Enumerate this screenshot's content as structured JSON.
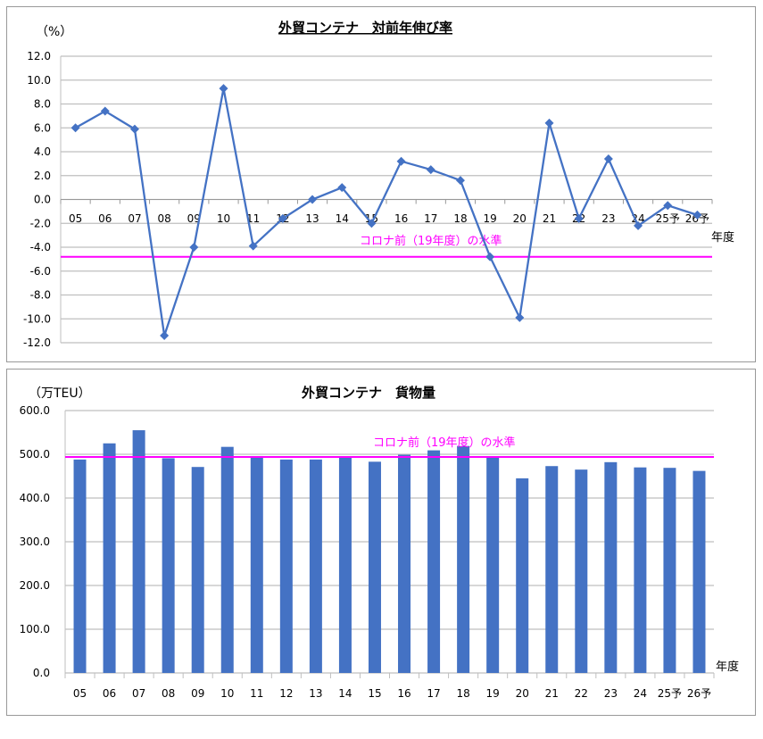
{
  "chart_data": [
    {
      "type": "line",
      "title": "外貿コンテナ　対前年伸び率",
      "ylabel": "（%）",
      "xlabel": "年度",
      "ylim": [
        -12,
        12
      ],
      "yticks": [
        "12.0",
        "10.0",
        "8.0",
        "6.0",
        "4.0",
        "2.0",
        "0.0",
        "-2.0",
        "-4.0",
        "-6.0",
        "-8.0",
        "-10.0",
        "-12.0"
      ],
      "categories": [
        "05",
        "06",
        "07",
        "08",
        "09",
        "10",
        "11",
        "12",
        "13",
        "14",
        "15",
        "16",
        "17",
        "18",
        "19",
        "20",
        "21",
        "22",
        "23",
        "24",
        "25予",
        "26予"
      ],
      "series": [
        {
          "name": "対前年伸び率",
          "values": [
            6.0,
            7.4,
            5.9,
            -11.4,
            -4.0,
            9.3,
            -3.9,
            -1.6,
            0.0,
            1.0,
            -2.0,
            3.2,
            2.5,
            1.6,
            -4.8,
            -9.9,
            6.4,
            -1.6,
            3.4,
            -2.2,
            -0.5,
            -1.3
          ]
        }
      ],
      "reference_line": {
        "label": "コロナ前（19年度）の水準",
        "value": -4.8
      },
      "grid": true,
      "colors": {
        "series": "#4472C4",
        "reference": "#FF00FF"
      }
    },
    {
      "type": "bar",
      "title": "外貿コンテナ　貨物量",
      "ylabel": "（万TEU）",
      "xlabel": "年度",
      "ylim": [
        0,
        600
      ],
      "yticks": [
        "600.0",
        "500.0",
        "400.0",
        "300.0",
        "200.0",
        "100.0",
        "0.0"
      ],
      "categories": [
        "05",
        "06",
        "07",
        "08",
        "09",
        "10",
        "11",
        "12",
        "13",
        "14",
        "15",
        "16",
        "17",
        "18",
        "19",
        "20",
        "21",
        "22",
        "23",
        "24",
        "25予",
        "26予"
      ],
      "series": [
        {
          "name": "貨物量",
          "values": [
            488,
            525,
            555,
            491,
            471,
            517,
            496,
            488,
            488,
            494,
            483,
            499,
            509,
            519,
            494,
            445,
            473,
            465,
            482,
            470,
            469,
            462
          ]
        }
      ],
      "reference_line": {
        "label": "コロナ前（19年度）の水準",
        "value": 494
      },
      "grid": true,
      "colors": {
        "series": "#4472C4",
        "reference": "#FF00FF"
      }
    }
  ]
}
